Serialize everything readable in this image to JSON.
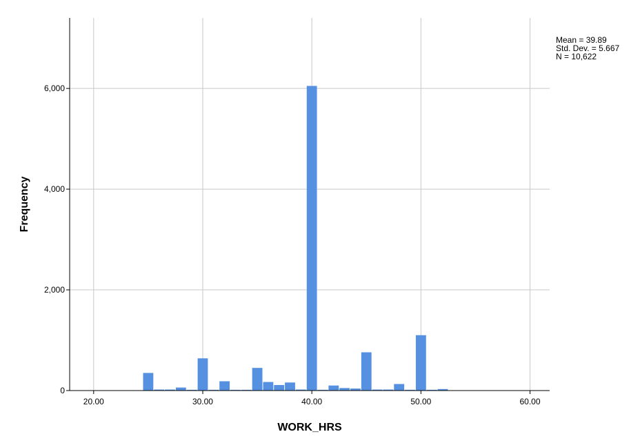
{
  "chart_data": {
    "type": "bar",
    "subtype": "histogram",
    "xlabel": "WORK_HRS",
    "ylabel": "Frequency",
    "xlim": [
      17.8,
      61.8
    ],
    "ylim": [
      0,
      7400
    ],
    "x_ticks": [
      "20.00",
      "30.00",
      "40.00",
      "50.00",
      "60.00"
    ],
    "x_tick_values": [
      20,
      30,
      40,
      50,
      60
    ],
    "y_ticks": [
      "0",
      "2,000",
      "4,000",
      "6,000"
    ],
    "y_tick_values": [
      0,
      2000,
      4000,
      6000
    ],
    "grid": true,
    "bar_color": "#5590e1",
    "bin_width": 1,
    "bins": [
      {
        "x": 25,
        "value": 350
      },
      {
        "x": 26,
        "value": 20
      },
      {
        "x": 27,
        "value": 20
      },
      {
        "x": 28,
        "value": 60
      },
      {
        "x": 29,
        "value": 15
      },
      {
        "x": 30,
        "value": 640
      },
      {
        "x": 31,
        "value": 15
      },
      {
        "x": 32,
        "value": 185
      },
      {
        "x": 33,
        "value": 15
      },
      {
        "x": 34,
        "value": 15
      },
      {
        "x": 35,
        "value": 450
      },
      {
        "x": 36,
        "value": 170
      },
      {
        "x": 37,
        "value": 110
      },
      {
        "x": 38,
        "value": 160
      },
      {
        "x": 39,
        "value": 20
      },
      {
        "x": 40,
        "value": 6050
      },
      {
        "x": 41,
        "value": 15
      },
      {
        "x": 42,
        "value": 100
      },
      {
        "x": 43,
        "value": 50
      },
      {
        "x": 44,
        "value": 40
      },
      {
        "x": 45,
        "value": 760
      },
      {
        "x": 46,
        "value": 20
      },
      {
        "x": 47,
        "value": 20
      },
      {
        "x": 48,
        "value": 130
      },
      {
        "x": 49,
        "value": 15
      },
      {
        "x": 50,
        "value": 1100
      },
      {
        "x": 51,
        "value": 15
      },
      {
        "x": 52,
        "value": 30
      }
    ]
  },
  "stats": {
    "mean": "Mean = 39.89",
    "std_dev": "Std. Dev. = 5.667",
    "n": "N = 10,622"
  }
}
